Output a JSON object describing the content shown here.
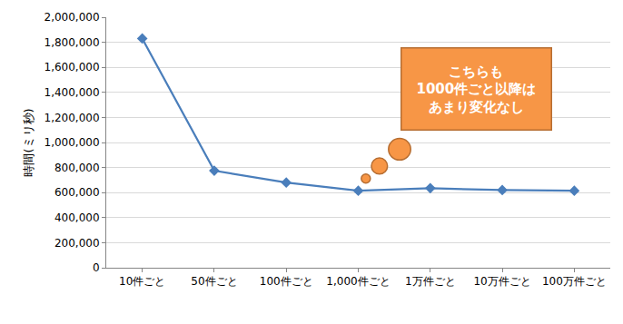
{
  "chart_data": {
    "type": "line",
    "y_label": "時間(ミリ秒)",
    "categories": [
      "10件ごと",
      "50件ごと",
      "100件ごと",
      "1,000件ごと",
      "1万件ごと",
      "10万件ごと",
      "100万件ごと"
    ],
    "values": [
      1830000,
      775000,
      680000,
      615000,
      635000,
      620000,
      615000
    ],
    "color": "#4a7ebb",
    "marker": "diamond",
    "ylim": [
      0,
      2000000
    ],
    "yticks": [
      0,
      {
        "value": 200000,
        "label": "200,000"
      },
      {
        "value": 400000,
        "label": "400,000"
      },
      {
        "value": 600000,
        "label": "600,000"
      },
      {
        "value": 800000,
        "label": "800,000"
      },
      {
        "value": 1000000,
        "label": "1,000,000"
      },
      {
        "value": 1200000,
        "label": "1,200,000"
      },
      {
        "value": 1400000,
        "label": "1,400,000"
      },
      {
        "value": 1600000,
        "label": "1,600,000"
      },
      {
        "value": 1800000,
        "label": "1,800,000"
      },
      {
        "value": 2000000,
        "label": "2,000,000"
      }
    ],
    "grid": true,
    "annotation": [
      "こちらも",
      "1000件ごと以降は",
      "あまり変化なし"
    ]
  }
}
